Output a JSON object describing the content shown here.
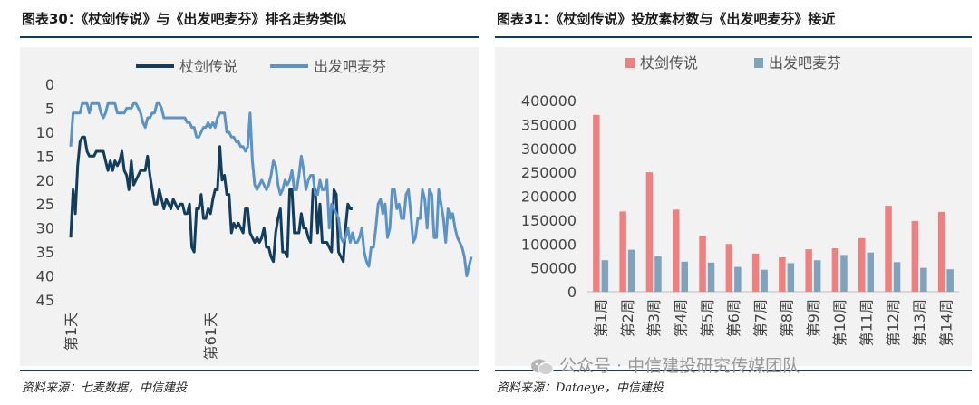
{
  "left": {
    "title": "图表30：《杖剑传说》与《出发吧麦芬》排名走势类似",
    "source": "资料来源：七麦数据，中信建投",
    "chart_data": {
      "type": "line",
      "y_inverted": true,
      "ylim": [
        0,
        45
      ],
      "yticks": [
        "0",
        "5",
        "10",
        "15",
        "20",
        "25",
        "30",
        "35",
        "40",
        "45"
      ],
      "xtick_labels": [
        {
          "index": 0,
          "label": "第1天"
        },
        {
          "index": 60,
          "label": "第61天"
        }
      ],
      "legend": {
        "placement": "top"
      },
      "series": [
        {
          "name": "杖剑传说",
          "color": "#123d5e",
          "values": [
            32,
            22,
            27,
            17,
            12,
            11,
            11,
            14,
            15,
            15,
            15,
            14,
            14,
            14,
            14,
            16,
            18,
            16,
            18,
            16,
            17,
            16,
            14,
            18,
            19,
            22,
            16,
            21,
            20,
            19,
            18,
            18,
            18,
            15,
            19,
            22,
            25,
            25,
            22,
            24,
            26,
            24,
            25,
            26,
            24,
            25,
            26,
            25,
            25,
            27,
            27,
            25,
            34,
            35,
            26,
            26,
            23,
            28,
            28,
            26,
            27,
            24,
            22,
            22,
            13,
            20,
            19,
            23,
            23,
            31,
            29,
            30,
            29,
            30,
            31,
            26,
            26,
            31,
            32,
            33,
            32,
            33,
            32,
            30,
            34,
            34,
            36,
            37,
            31,
            28,
            26,
            35,
            35,
            36,
            22,
            22,
            31,
            31,
            31,
            27,
            30,
            30,
            32,
            33,
            22,
            22,
            31,
            25,
            33,
            33,
            33,
            34,
            35,
            22,
            23,
            35,
            36,
            37,
            30,
            25,
            26,
            26
          ]
        },
        {
          "name": "出发吧麦芬",
          "color": "#5b93c9",
          "values": [
            13,
            6,
            6,
            6,
            6,
            4,
            4,
            4,
            6,
            4,
            4,
            4,
            4,
            6,
            7,
            6,
            4,
            4,
            4,
            4,
            6,
            6,
            6,
            6,
            5,
            5,
            5,
            4,
            4,
            5,
            6,
            8,
            9,
            7,
            7,
            6,
            6,
            4,
            4,
            5,
            7,
            7,
            7,
            7,
            7,
            7,
            7,
            7,
            7,
            7,
            8,
            8,
            9,
            9,
            11,
            11,
            10,
            9,
            9,
            8,
            9,
            8,
            9,
            7,
            6,
            6,
            6,
            10,
            10,
            11,
            11,
            12,
            12,
            13,
            13,
            14,
            13,
            6,
            16,
            21,
            22,
            21,
            20,
            21,
            22,
            21,
            19,
            16,
            17,
            21,
            23,
            22,
            20,
            21,
            20,
            18,
            22,
            22,
            19,
            15,
            18,
            22,
            20,
            19,
            19,
            23,
            23,
            20,
            22,
            22,
            20,
            30,
            25,
            26,
            27,
            28,
            32,
            33,
            32,
            30,
            33,
            31,
            33,
            33,
            32,
            30,
            35,
            37,
            38,
            34,
            34,
            30,
            25,
            24,
            27,
            25,
            32,
            30,
            22,
            22,
            26,
            25,
            28,
            28,
            23,
            22,
            27,
            33,
            32,
            28,
            28,
            22,
            24,
            30,
            22,
            23,
            32,
            32,
            22,
            25,
            28,
            33,
            26,
            28,
            27,
            30,
            32,
            33,
            34,
            36,
            40,
            38,
            36
          ]
        }
      ]
    }
  },
  "right": {
    "title": "图表31：《杖剑传说》投放素材数与《出发吧麦芬》接近",
    "source": "资料来源：Dataeye，中信建投",
    "chart_data": {
      "type": "bar",
      "ylim": [
        0,
        400000
      ],
      "yticks": [
        "0",
        "50000",
        "100000",
        "150000",
        "200000",
        "250000",
        "300000",
        "350000",
        "400000"
      ],
      "categories": [
        "第1周",
        "第2周",
        "第3周",
        "第4周",
        "第5周",
        "第6周",
        "第7周",
        "第8周",
        "第9周",
        "第10周",
        "第11周",
        "第12周",
        "第13周",
        "第14周"
      ],
      "legend": {
        "placement": "top"
      },
      "series": [
        {
          "name": "杖剑传说",
          "color": "#f08080",
          "values": [
            370000,
            168000,
            250000,
            172000,
            117000,
            100000,
            80000,
            72000,
            89000,
            91000,
            112000,
            180000,
            148000,
            167000
          ]
        },
        {
          "name": "出发吧麦芬",
          "color": "#7fa3bd",
          "values": [
            66000,
            88000,
            74000,
            63000,
            61000,
            52000,
            46000,
            60000,
            66000,
            77000,
            82000,
            62000,
            50000,
            47000
          ]
        }
      ]
    }
  },
  "watermark": {
    "text": "公众号 · 中信建投研究传媒团队",
    "icon": "wechat-icon"
  }
}
